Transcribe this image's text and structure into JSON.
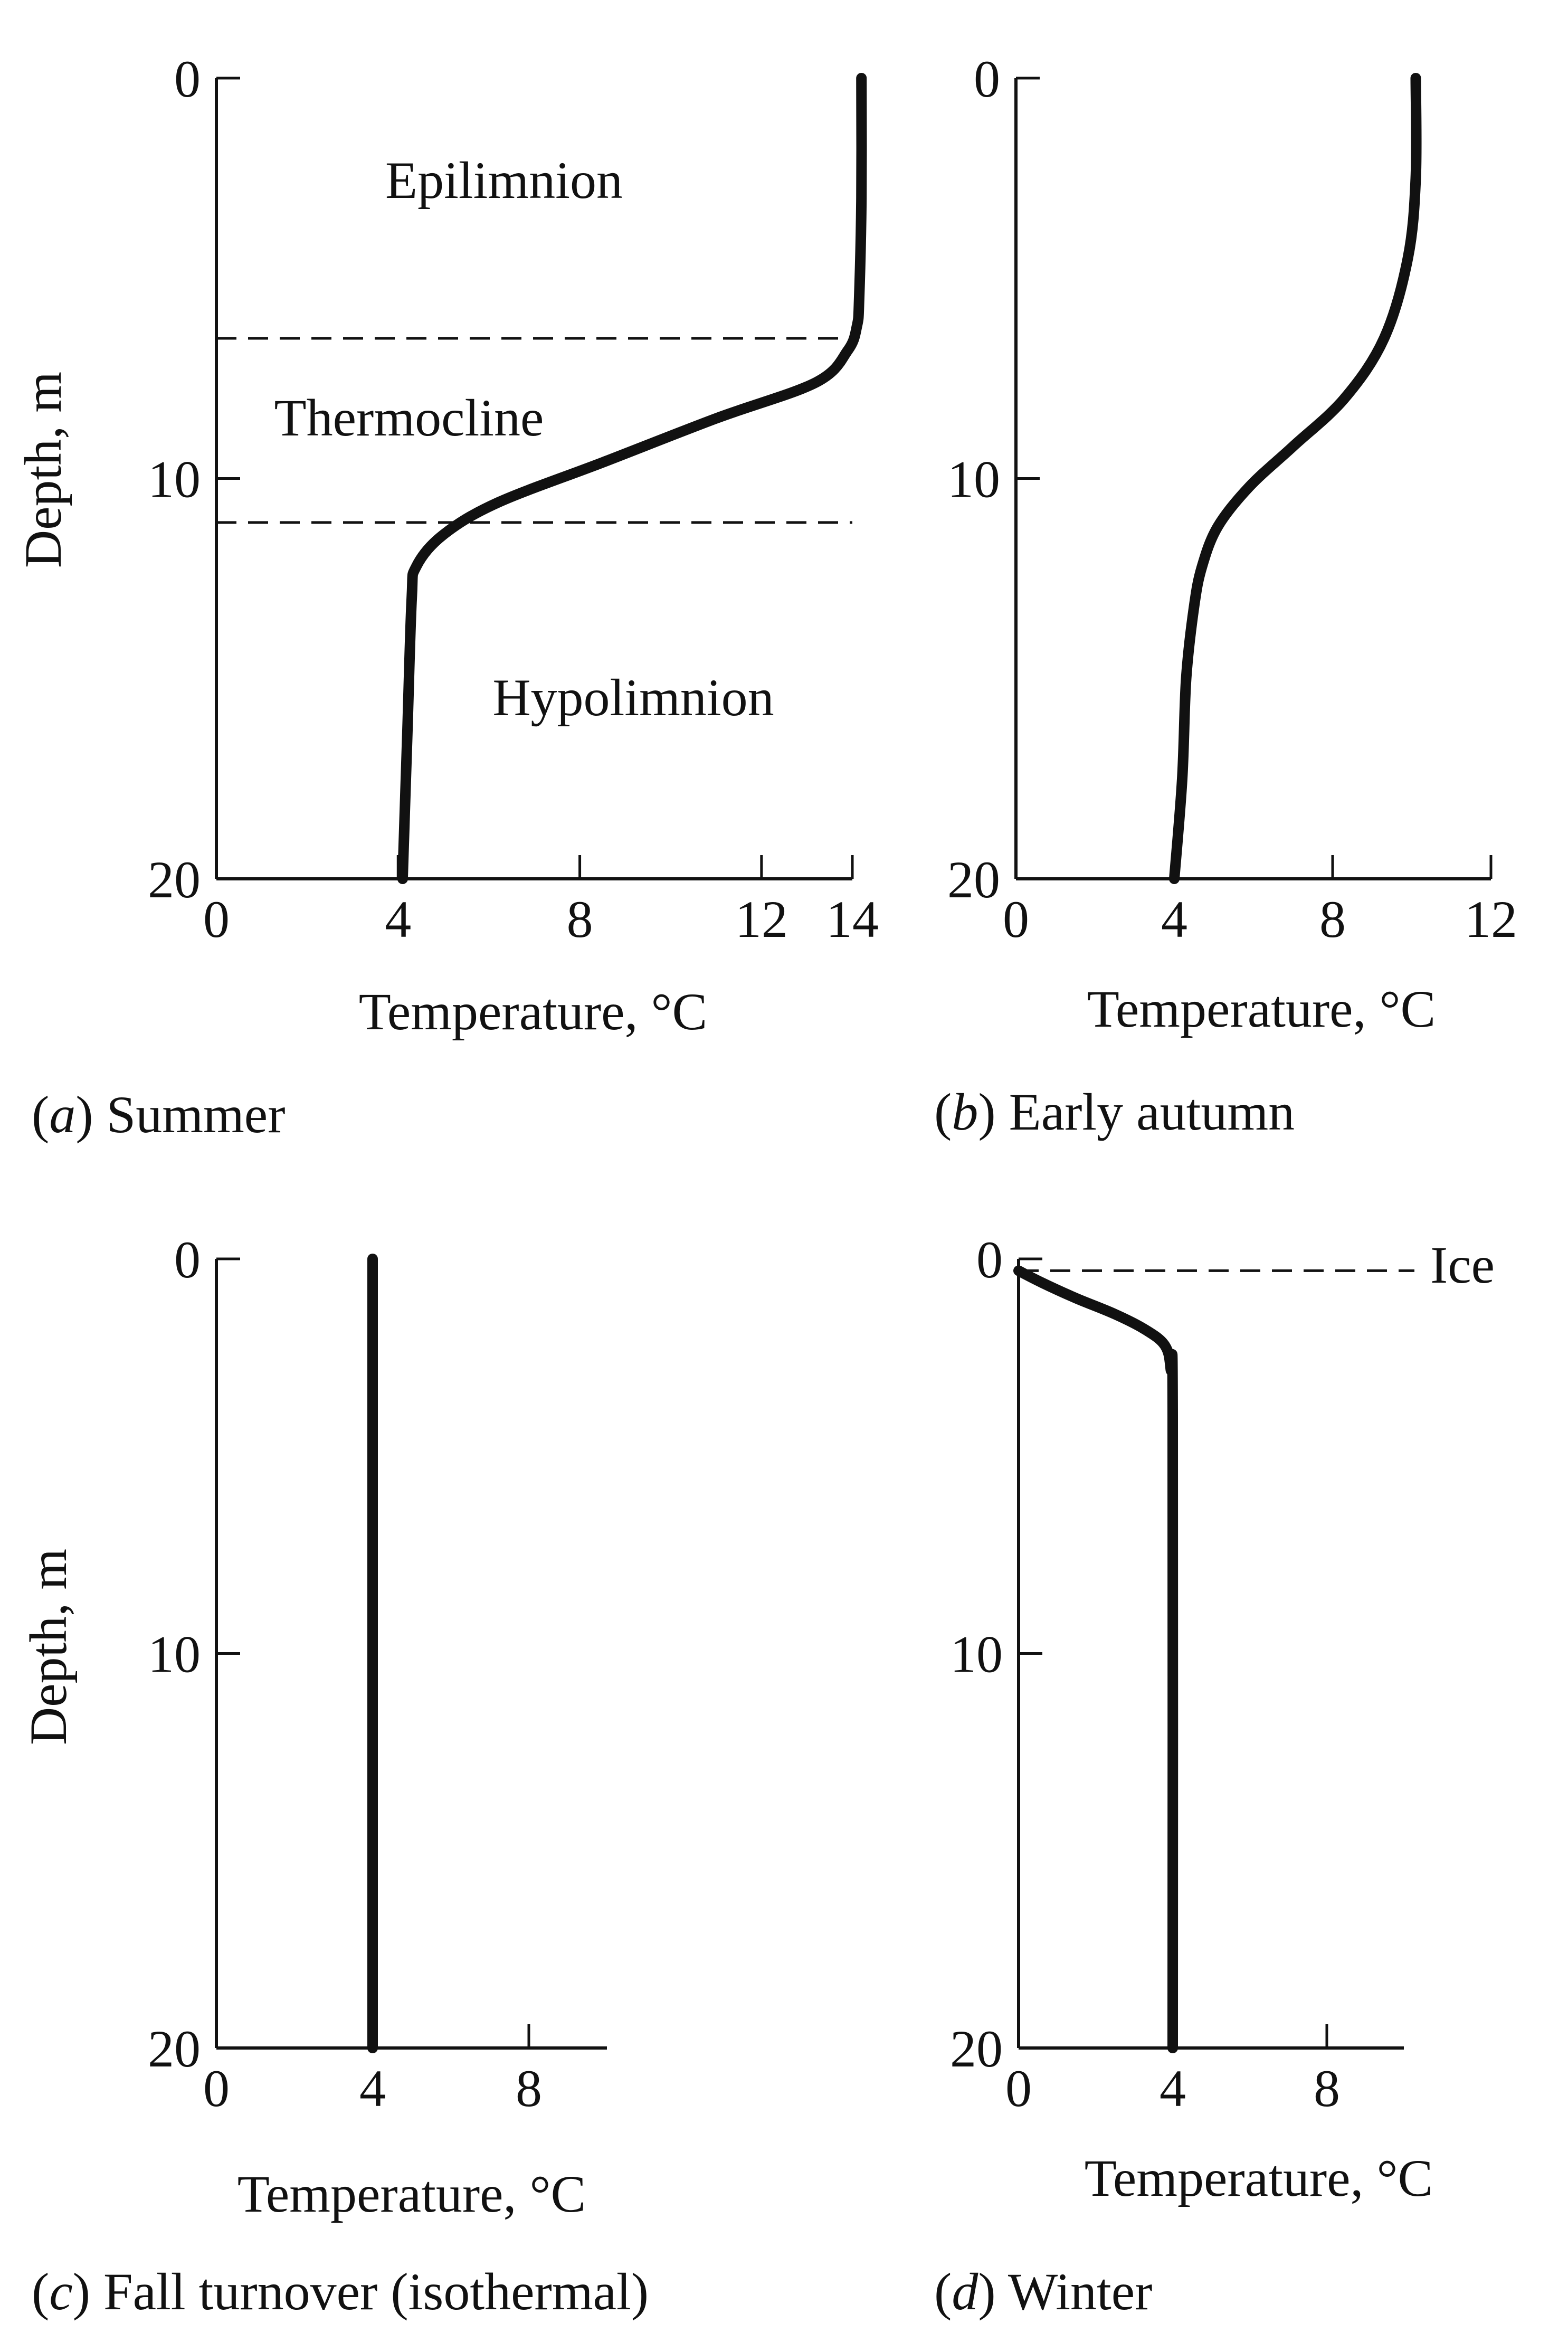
{
  "chart_data": [
    {
      "type": "line",
      "panel_letter": "a",
      "caption": "Summer",
      "xlabel": "Temperature, °C",
      "ylabel": "Depth, m",
      "xlim": [
        0,
        14
      ],
      "ylim": [
        0,
        20
      ],
      "y_inverted": true,
      "xticks": [
        0,
        4,
        8,
        12,
        14
      ],
      "yticks": [
        0,
        10,
        20
      ],
      "series": [
        {
          "x": [
            14.2,
            14.2,
            14.15,
            14.1,
            13.9,
            13.2,
            11.0,
            8.5,
            6.2,
            5.0,
            4.4,
            4.3,
            4.2,
            4.1
          ],
          "y": [
            0,
            3,
            5.5,
            6.2,
            6.8,
            7.6,
            8.5,
            9.6,
            10.6,
            11.4,
            12.2,
            13.0,
            16.5,
            20
          ]
        }
      ],
      "hlines": [
        6.5,
        11.1
      ],
      "annotations": [
        "Epilimnion",
        "Thermocline",
        "Hypolimnion"
      ]
    },
    {
      "type": "line",
      "panel_letter": "b",
      "caption": "Early autumn",
      "xlabel": "Temperature, °C",
      "ylabel": "",
      "xlim": [
        0,
        12
      ],
      "ylim": [
        0,
        20
      ],
      "y_inverted": true,
      "xticks": [
        0,
        4,
        8,
        12
      ],
      "yticks": [
        0,
        10,
        20
      ],
      "series": [
        {
          "x": [
            10.1,
            10.1,
            9.9,
            9.3,
            8.3,
            7.0,
            5.9,
            5.1,
            4.7,
            4.5,
            4.3,
            4.2,
            4.0
          ],
          "y": [
            0,
            2.5,
            4.5,
            6.5,
            8.0,
            9.2,
            10.2,
            11.2,
            12.2,
            13.2,
            15.0,
            17.5,
            20
          ]
        }
      ],
      "hlines": [],
      "annotations": []
    },
    {
      "type": "line",
      "panel_letter": "c",
      "caption": "Fall turnover (isothermal)",
      "xlabel": "Temperature, °C",
      "ylabel": "Depth, m",
      "xlim": [
        0,
        10
      ],
      "ylim": [
        0,
        20
      ],
      "y_inverted": true,
      "xticks": [
        0,
        4,
        8
      ],
      "yticks": [
        0,
        10,
        20
      ],
      "series": [
        {
          "x": [
            4,
            4
          ],
          "y": [
            0,
            20
          ]
        }
      ],
      "hlines": [],
      "annotations": []
    },
    {
      "type": "line",
      "panel_letter": "d",
      "caption": "Winter",
      "xlabel": "Temperature, °C",
      "ylabel": "",
      "xlim": [
        0,
        10
      ],
      "ylim": [
        0,
        20
      ],
      "y_inverted": true,
      "xticks": [
        0,
        4,
        8
      ],
      "yticks": [
        0,
        10,
        20
      ],
      "series": [
        {
          "x": [
            0.0,
            0.6,
            1.5,
            2.5,
            3.3,
            3.8,
            3.95,
            4.0,
            4.0
          ],
          "y": [
            0.3,
            0.6,
            1.0,
            1.4,
            1.8,
            2.2,
            2.8,
            4.0,
            20
          ]
        }
      ],
      "hlines": [
        0.3
      ],
      "annotations": [
        "Ice"
      ]
    }
  ],
  "colors": {
    "ink": "#111111",
    "background": "#ffffff"
  }
}
